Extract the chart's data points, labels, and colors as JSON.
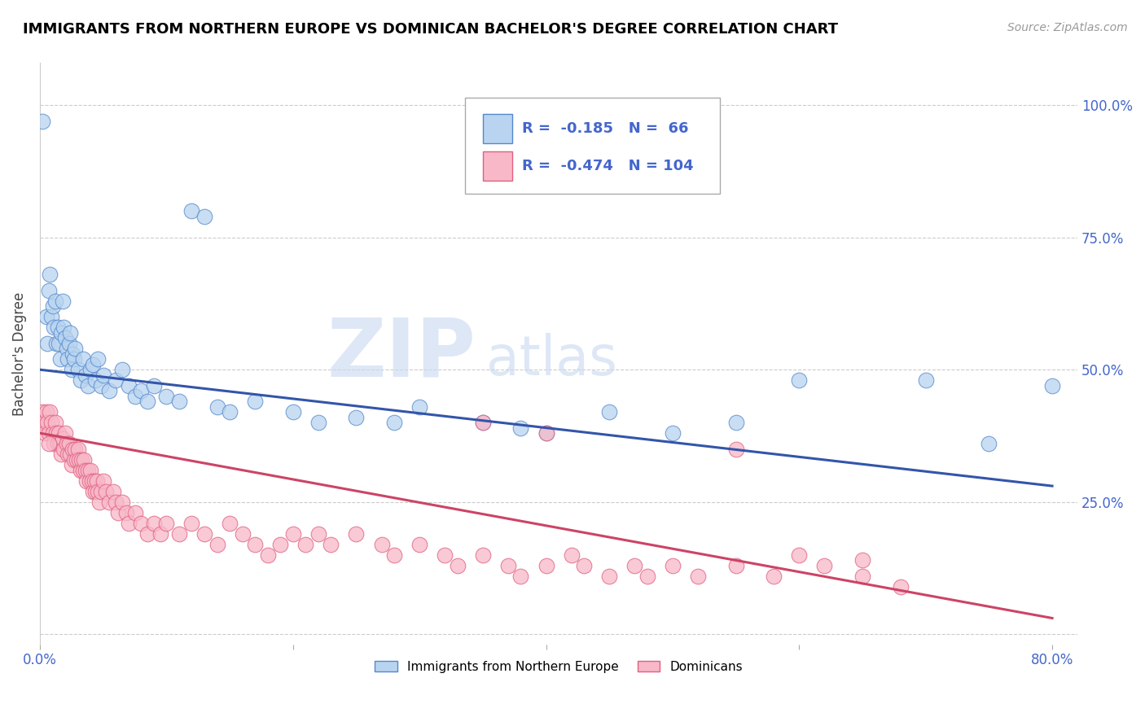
{
  "title": "IMMIGRANTS FROM NORTHERN EUROPE VS DOMINICAN BACHELOR'S DEGREE CORRELATION CHART",
  "source": "Source: ZipAtlas.com",
  "ylabel": "Bachelor's Degree",
  "ylim": [
    -0.02,
    1.08
  ],
  "xlim": [
    0.0,
    0.82
  ],
  "ytick_positions": [
    0.0,
    0.25,
    0.5,
    0.75,
    1.0
  ],
  "ytick_labels_right": [
    "",
    "25.0%",
    "50.0%",
    "75.0%",
    "100.0%"
  ],
  "xtick_positions": [
    0.0,
    0.2,
    0.4,
    0.6,
    0.8
  ],
  "xtick_labels": [
    "0.0%",
    "",
    "",
    "",
    "80.0%"
  ],
  "watermark_zip": "ZIP",
  "watermark_atlas": "atlas",
  "legend_blue_r": "-0.185",
  "legend_blue_n": "66",
  "legend_pink_r": "-0.474",
  "legend_pink_n": "104",
  "legend_label_blue": "Immigrants from Northern Europe",
  "legend_label_pink": "Dominicans",
  "blue_fill_color": "#b8d4f0",
  "blue_edge_color": "#5588cc",
  "pink_fill_color": "#f8b8c8",
  "pink_edge_color": "#e06080",
  "blue_line_color": "#3355aa",
  "pink_line_color": "#cc4466",
  "grid_color": "#cccccc",
  "tick_label_color": "#4466cc",
  "blue_trend_x0": 0.0,
  "blue_trend_y0": 0.5,
  "blue_trend_x1": 0.8,
  "blue_trend_y1": 0.28,
  "pink_trend_x0": 0.0,
  "pink_trend_y0": 0.38,
  "pink_trend_x1": 0.8,
  "pink_trend_y1": 0.03,
  "blue_points": [
    [
      0.002,
      0.97
    ],
    [
      0.005,
      0.6
    ],
    [
      0.006,
      0.55
    ],
    [
      0.007,
      0.65
    ],
    [
      0.008,
      0.68
    ],
    [
      0.009,
      0.6
    ],
    [
      0.01,
      0.62
    ],
    [
      0.011,
      0.58
    ],
    [
      0.012,
      0.63
    ],
    [
      0.013,
      0.55
    ],
    [
      0.014,
      0.58
    ],
    [
      0.015,
      0.55
    ],
    [
      0.016,
      0.52
    ],
    [
      0.017,
      0.57
    ],
    [
      0.018,
      0.63
    ],
    [
      0.019,
      0.58
    ],
    [
      0.02,
      0.56
    ],
    [
      0.021,
      0.54
    ],
    [
      0.022,
      0.52
    ],
    [
      0.023,
      0.55
    ],
    [
      0.024,
      0.57
    ],
    [
      0.025,
      0.5
    ],
    [
      0.026,
      0.53
    ],
    [
      0.027,
      0.52
    ],
    [
      0.028,
      0.54
    ],
    [
      0.03,
      0.5
    ],
    [
      0.032,
      0.48
    ],
    [
      0.034,
      0.52
    ],
    [
      0.036,
      0.49
    ],
    [
      0.038,
      0.47
    ],
    [
      0.04,
      0.5
    ],
    [
      0.042,
      0.51
    ],
    [
      0.044,
      0.48
    ],
    [
      0.046,
      0.52
    ],
    [
      0.048,
      0.47
    ],
    [
      0.05,
      0.49
    ],
    [
      0.055,
      0.46
    ],
    [
      0.06,
      0.48
    ],
    [
      0.065,
      0.5
    ],
    [
      0.07,
      0.47
    ],
    [
      0.075,
      0.45
    ],
    [
      0.08,
      0.46
    ],
    [
      0.085,
      0.44
    ],
    [
      0.09,
      0.47
    ],
    [
      0.1,
      0.45
    ],
    [
      0.11,
      0.44
    ],
    [
      0.12,
      0.8
    ],
    [
      0.13,
      0.79
    ],
    [
      0.14,
      0.43
    ],
    [
      0.15,
      0.42
    ],
    [
      0.17,
      0.44
    ],
    [
      0.2,
      0.42
    ],
    [
      0.22,
      0.4
    ],
    [
      0.25,
      0.41
    ],
    [
      0.28,
      0.4
    ],
    [
      0.3,
      0.43
    ],
    [
      0.35,
      0.4
    ],
    [
      0.38,
      0.39
    ],
    [
      0.4,
      0.38
    ],
    [
      0.45,
      0.42
    ],
    [
      0.5,
      0.38
    ],
    [
      0.55,
      0.4
    ],
    [
      0.6,
      0.48
    ],
    [
      0.7,
      0.48
    ],
    [
      0.75,
      0.36
    ],
    [
      0.8,
      0.47
    ]
  ],
  "pink_points": [
    [
      0.001,
      0.4
    ],
    [
      0.002,
      0.42
    ],
    [
      0.003,
      0.4
    ],
    [
      0.004,
      0.38
    ],
    [
      0.005,
      0.42
    ],
    [
      0.006,
      0.4
    ],
    [
      0.007,
      0.38
    ],
    [
      0.008,
      0.42
    ],
    [
      0.009,
      0.4
    ],
    [
      0.01,
      0.38
    ],
    [
      0.011,
      0.36
    ],
    [
      0.012,
      0.4
    ],
    [
      0.013,
      0.38
    ],
    [
      0.014,
      0.36
    ],
    [
      0.015,
      0.38
    ],
    [
      0.016,
      0.36
    ],
    [
      0.017,
      0.34
    ],
    [
      0.018,
      0.37
    ],
    [
      0.019,
      0.35
    ],
    [
      0.02,
      0.38
    ],
    [
      0.021,
      0.36
    ],
    [
      0.022,
      0.34
    ],
    [
      0.023,
      0.36
    ],
    [
      0.024,
      0.34
    ],
    [
      0.025,
      0.32
    ],
    [
      0.026,
      0.35
    ],
    [
      0.027,
      0.33
    ],
    [
      0.028,
      0.35
    ],
    [
      0.029,
      0.33
    ],
    [
      0.03,
      0.35
    ],
    [
      0.031,
      0.33
    ],
    [
      0.032,
      0.31
    ],
    [
      0.033,
      0.33
    ],
    [
      0.034,
      0.31
    ],
    [
      0.035,
      0.33
    ],
    [
      0.036,
      0.31
    ],
    [
      0.037,
      0.29
    ],
    [
      0.038,
      0.31
    ],
    [
      0.039,
      0.29
    ],
    [
      0.04,
      0.31
    ],
    [
      0.041,
      0.29
    ],
    [
      0.042,
      0.27
    ],
    [
      0.043,
      0.29
    ],
    [
      0.044,
      0.27
    ],
    [
      0.045,
      0.29
    ],
    [
      0.046,
      0.27
    ],
    [
      0.047,
      0.25
    ],
    [
      0.048,
      0.27
    ],
    [
      0.05,
      0.29
    ],
    [
      0.052,
      0.27
    ],
    [
      0.055,
      0.25
    ],
    [
      0.058,
      0.27
    ],
    [
      0.06,
      0.25
    ],
    [
      0.062,
      0.23
    ],
    [
      0.065,
      0.25
    ],
    [
      0.068,
      0.23
    ],
    [
      0.07,
      0.21
    ],
    [
      0.075,
      0.23
    ],
    [
      0.08,
      0.21
    ],
    [
      0.085,
      0.19
    ],
    [
      0.09,
      0.21
    ],
    [
      0.095,
      0.19
    ],
    [
      0.1,
      0.21
    ],
    [
      0.11,
      0.19
    ],
    [
      0.12,
      0.21
    ],
    [
      0.13,
      0.19
    ],
    [
      0.14,
      0.17
    ],
    [
      0.15,
      0.21
    ],
    [
      0.16,
      0.19
    ],
    [
      0.17,
      0.17
    ],
    [
      0.18,
      0.15
    ],
    [
      0.19,
      0.17
    ],
    [
      0.2,
      0.19
    ],
    [
      0.21,
      0.17
    ],
    [
      0.22,
      0.19
    ],
    [
      0.23,
      0.17
    ],
    [
      0.25,
      0.19
    ],
    [
      0.27,
      0.17
    ],
    [
      0.28,
      0.15
    ],
    [
      0.3,
      0.17
    ],
    [
      0.32,
      0.15
    ],
    [
      0.33,
      0.13
    ],
    [
      0.35,
      0.15
    ],
    [
      0.37,
      0.13
    ],
    [
      0.38,
      0.11
    ],
    [
      0.4,
      0.13
    ],
    [
      0.42,
      0.15
    ],
    [
      0.43,
      0.13
    ],
    [
      0.45,
      0.11
    ],
    [
      0.47,
      0.13
    ],
    [
      0.48,
      0.11
    ],
    [
      0.5,
      0.13
    ],
    [
      0.52,
      0.11
    ],
    [
      0.55,
      0.13
    ],
    [
      0.58,
      0.11
    ],
    [
      0.6,
      0.15
    ],
    [
      0.62,
      0.13
    ],
    [
      0.65,
      0.11
    ],
    [
      0.68,
      0.09
    ],
    [
      0.007,
      0.36
    ],
    [
      0.35,
      0.4
    ],
    [
      0.4,
      0.38
    ],
    [
      0.55,
      0.35
    ],
    [
      0.65,
      0.14
    ]
  ]
}
